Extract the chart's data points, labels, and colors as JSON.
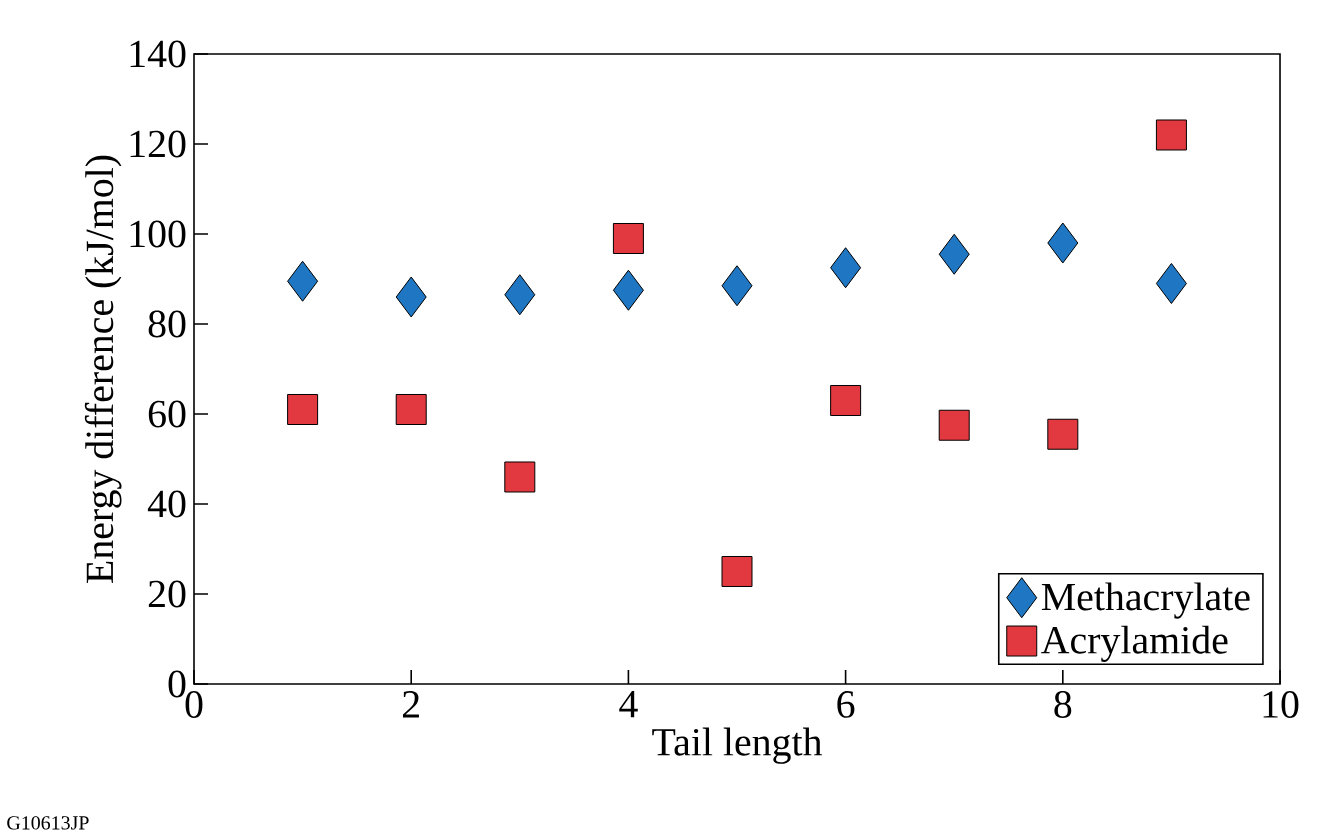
{
  "chart_data": {
    "type": "scatter",
    "xlabel": "Tail length",
    "ylabel": "Energy difference (kJ/mol)",
    "x": [
      1,
      2,
      3,
      4,
      5,
      6,
      7,
      8,
      9
    ],
    "series": [
      {
        "name": "Methacrylate",
        "color": "#1f77c4",
        "marker": "diamond",
        "values": [
          89.5,
          86,
          86.5,
          87.5,
          88.5,
          92.5,
          95.5,
          98,
          89
        ]
      },
      {
        "name": "Acrylamide",
        "color": "#e2383f",
        "marker": "square",
        "values": [
          61,
          61,
          46,
          99,
          25,
          63,
          57.5,
          55.5,
          122
        ]
      }
    ],
    "xlim": [
      0,
      10
    ],
    "ylim": [
      0,
      140
    ],
    "xticks": [
      0,
      2,
      4,
      6,
      8,
      10
    ],
    "yticks": [
      0,
      20,
      40,
      60,
      80,
      100,
      120,
      140
    ],
    "legend": "bottom right",
    "annotations": [
      "G10613JP"
    ]
  }
}
